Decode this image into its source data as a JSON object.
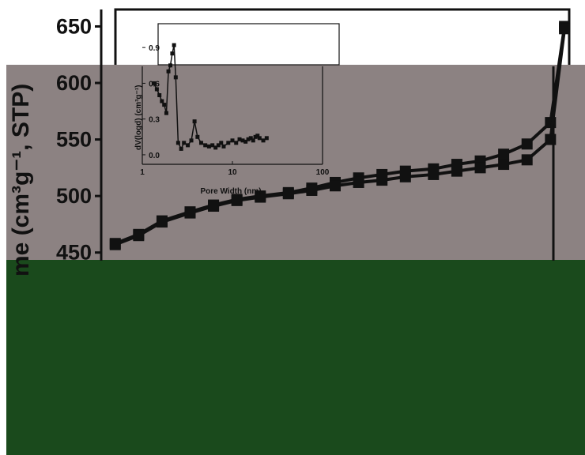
{
  "chart_data": [
    {
      "type": "line",
      "title": "",
      "xlabel": "",
      "ylabel": "me (cm³g⁻¹, STP)",
      "ylim": [
        440,
        665
      ],
      "yticks": [
        450,
        500,
        550,
        600,
        650
      ],
      "x": [
        0.03,
        0.08,
        0.13,
        0.19,
        0.24,
        0.29,
        0.34,
        0.4,
        0.45,
        0.5,
        0.55,
        0.6,
        0.65,
        0.71,
        0.76,
        0.81,
        0.86,
        0.91,
        0.96,
        0.99
      ],
      "series": [
        {
          "values": [
            458,
            466,
            478,
            486,
            492,
            497,
            500,
            503,
            507,
            512,
            516,
            519,
            522,
            524,
            528,
            531,
            537,
            546,
            565,
            650
          ]
        },
        {
          "values": [
            457,
            465,
            477,
            485,
            491,
            496,
            499,
            502,
            505,
            509,
            512,
            514,
            517,
            519,
            522,
            525,
            528,
            532,
            550,
            648
          ]
        }
      ],
      "grid": false,
      "colors": {
        "line": "#111111",
        "background": "#8c8282",
        "lower_band": "#1a4a1c"
      }
    },
    {
      "type": "line",
      "title": "",
      "xlabel": "Pore Width (nm)",
      "ylabel": "dV(logd) (cm³g⁻¹)",
      "xscale": "log",
      "xlim": [
        1,
        100
      ],
      "ylim": [
        -0.08,
        1.1
      ],
      "xticks": [
        1,
        10,
        100
      ],
      "yticks": [
        0.0,
        0.3,
        0.6,
        0.9
      ],
      "series": [
        {
          "x": [
            1.35,
            1.45,
            1.55,
            1.65,
            1.75,
            1.85,
            1.95,
            2.05,
            2.15,
            2.25,
            2.35,
            2.5,
            2.7,
            2.9,
            3.2,
            3.5,
            3.8,
            4.1,
            4.5,
            5,
            5.5,
            6,
            6.5,
            7,
            7.5,
            8,
            9,
            10,
            11,
            12,
            13,
            14,
            15,
            16,
            17,
            18,
            19,
            20,
            22,
            24
          ],
          "values": [
            0.6,
            0.55,
            0.5,
            0.45,
            0.42,
            0.35,
            0.7,
            0.75,
            0.85,
            0.92,
            0.65,
            0.1,
            0.05,
            0.1,
            0.08,
            0.12,
            0.28,
            0.15,
            0.1,
            0.08,
            0.07,
            0.08,
            0.06,
            0.08,
            0.1,
            0.07,
            0.1,
            0.12,
            0.1,
            0.13,
            0.12,
            0.11,
            0.13,
            0.14,
            0.12,
            0.15,
            0.16,
            0.14,
            0.12,
            0.14
          ]
        }
      ]
    }
  ]
}
